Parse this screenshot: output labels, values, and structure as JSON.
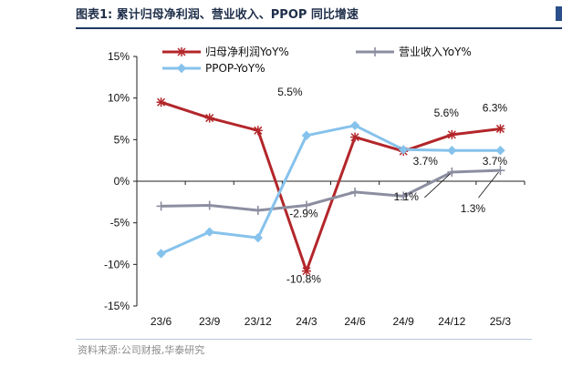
{
  "figure": {
    "title": "图表1:  累计归母净利润、营业收入、PPOP 同比增速",
    "source": "资料来源:公司财报,华泰研究"
  },
  "chart_data": {
    "type": "line",
    "categories": [
      "23/6",
      "23/9",
      "23/12",
      "24/3",
      "24/6",
      "24/9",
      "24/12",
      "25/3"
    ],
    "ylim": [
      -15,
      15
    ],
    "yticks": [
      -15,
      -10,
      -5,
      0,
      5,
      10,
      15
    ],
    "ytick_labels": [
      "-15%",
      "-10%",
      "-5%",
      "0%",
      "5%",
      "10%",
      "15%"
    ],
    "grid": false,
    "legend_position": "top",
    "series": [
      {
        "name": "归母净利润YoY%",
        "color": "#b3262a",
        "marker": "star",
        "values": [
          9.5,
          7.6,
          6.1,
          -10.8,
          5.3,
          3.6,
          5.6,
          6.3
        ]
      },
      {
        "name": "营业收入YoY%",
        "color": "#8c8ea0",
        "marker": "plus",
        "values": [
          -3.0,
          -2.9,
          -3.5,
          -2.9,
          -1.3,
          -1.8,
          1.1,
          1.3
        ]
      },
      {
        "name": "PPOP-YoY%",
        "color": "#86c2ec",
        "marker": "diamond",
        "values": [
          -8.7,
          -6.1,
          -6.8,
          5.5,
          6.7,
          3.8,
          3.7,
          3.7
        ]
      }
    ],
    "annotations": [
      {
        "text": "5.5%",
        "series": 2,
        "index": 3
      },
      {
        "text": "-2.9%",
        "series": 1,
        "index": 3
      },
      {
        "text": "-10.8%",
        "series": 0,
        "index": 3
      },
      {
        "text": "5.6%",
        "series": 0,
        "index": 6
      },
      {
        "text": "6.3%",
        "series": 0,
        "index": 7
      },
      {
        "text": "3.7%",
        "series": 2,
        "index": 6
      },
      {
        "text": "3.7%",
        "series": 2,
        "index": 7
      },
      {
        "text": "1.1%",
        "series": 1,
        "index": 6
      },
      {
        "text": "1.3%",
        "series": 1,
        "index": 7
      }
    ]
  }
}
